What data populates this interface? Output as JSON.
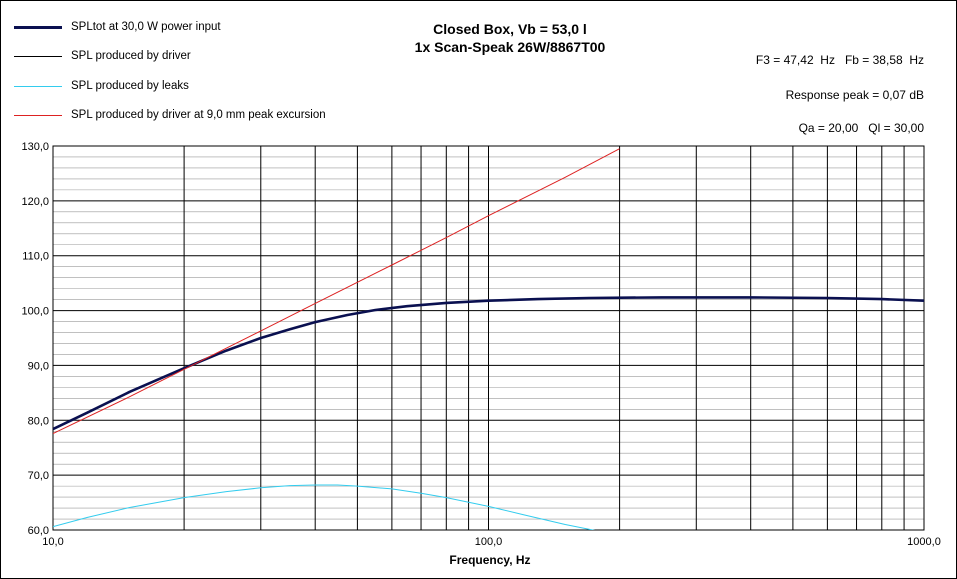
{
  "chart_data": {
    "type": "line",
    "title": "Closed Box, Vb = 53,0 l",
    "subtitle": "1x Scan-Speak 26W/8867T00",
    "xlabel": "Frequency, Hz",
    "ylabel": "",
    "xscale": "log",
    "xlim": [
      10,
      1000
    ],
    "ylim": [
      60,
      130
    ],
    "grid": true,
    "legend_position": "top-left",
    "x_tick_labels": [
      "10,0",
      "100,0",
      "1000,0"
    ],
    "y_ticks": [
      60,
      70,
      80,
      90,
      100,
      110,
      120,
      130
    ],
    "y_tick_labels": [
      "60,0",
      "70,0",
      "80,0",
      "90,0",
      "100,0",
      "110,0",
      "120,0",
      "130,0"
    ],
    "annotations": [
      "F3 = 47,42  Hz   Fb = 38,58  Hz",
      "Response peak = 0,07 dB",
      "Qa = 20,00   Ql = 30,00"
    ],
    "series": [
      {
        "name": "SPLtot at 30,0 W power input",
        "color": "#0a1050",
        "x": [
          10,
          12,
          15,
          20,
          25,
          30,
          35,
          40,
          47.42,
          55,
          65,
          80,
          100,
          130,
          170,
          250,
          400,
          600,
          800,
          1000
        ],
        "y": [
          78.4,
          81.4,
          85.2,
          89.5,
          92.7,
          95.0,
          96.6,
          97.9,
          99.2,
          100.1,
          100.8,
          101.4,
          101.8,
          102.1,
          102.3,
          102.4,
          102.4,
          102.3,
          102.1,
          101.8
        ]
      },
      {
        "name": "SPL produced by driver",
        "color": "#000000",
        "x": [],
        "y": []
      },
      {
        "name": "SPL produced by leaks",
        "color": "#33ccee",
        "x": [
          10,
          12,
          15,
          20,
          25,
          30,
          35,
          40,
          45,
          50,
          60,
          70,
          80,
          100,
          120,
          150,
          181
        ],
        "y": [
          60.6,
          62.3,
          64.1,
          65.9,
          67.0,
          67.7,
          68.1,
          68.2,
          68.2,
          68.0,
          67.5,
          66.7,
          65.9,
          64.3,
          62.8,
          61.0,
          59.7
        ]
      },
      {
        "name": "SPL produced by driver at 9,0 mm peak excursion",
        "color": "#dd2222",
        "x": [
          10,
          15,
          20,
          30,
          40,
          60,
          80,
          100,
          150,
          200
        ],
        "y": [
          77.6,
          84.3,
          89.3,
          96.3,
          101.3,
          108.3,
          113.3,
          117.3,
          124.3,
          129.5
        ]
      }
    ]
  }
}
